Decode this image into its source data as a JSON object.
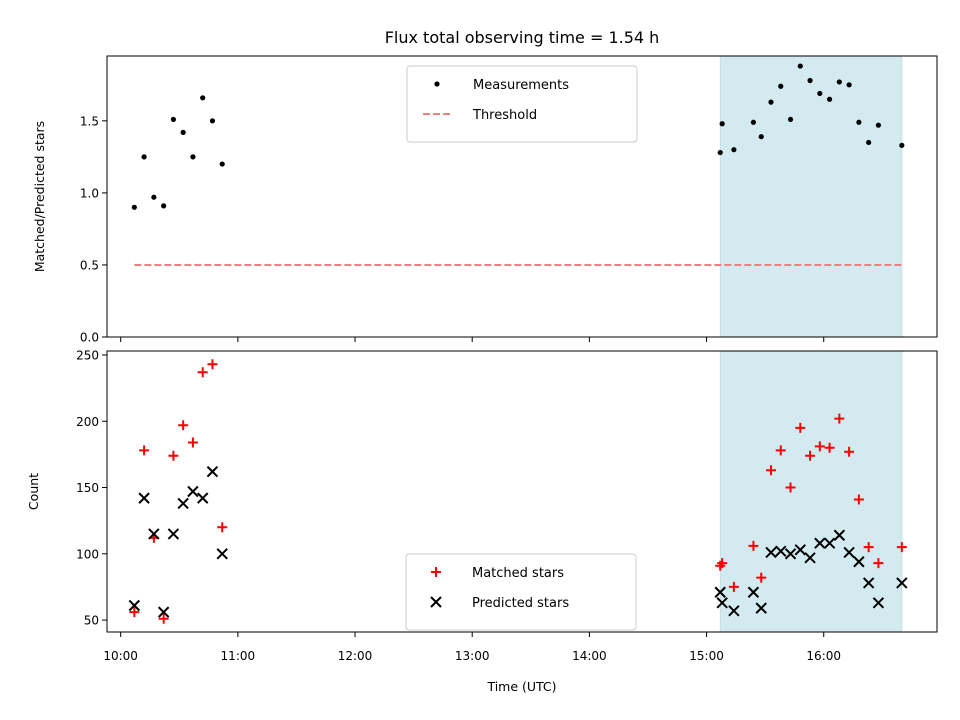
{
  "chart_data": {
    "title": "Flux total observing time = 1.54 h",
    "xlabel": "Time (UTC)",
    "x_tick_labels": [
      "10:00",
      "11:00",
      "12:00",
      "13:00",
      "14:00",
      "15:00",
      "16:00"
    ],
    "x_ticks": [
      "10:00",
      "11:00",
      "12:00",
      "13:00",
      "14:00",
      "15:00",
      "16:00"
    ],
    "xlim": [
      "09:53",
      "16:58"
    ],
    "highlight": {
      "start": "15:07",
      "end": "16:40",
      "color": "#d3eaf0"
    },
    "charts": [
      {
        "id": "ratio",
        "type": "scatter",
        "ylabel": "Matched/Predicted stars",
        "ylim": [
          0,
          1.95
        ],
        "y_ticks": [
          0.0,
          0.5,
          1.0,
          1.5
        ],
        "y_tick_labels": [
          "0.0",
          "0.5",
          "1.0",
          "1.5"
        ],
        "legend": {
          "placement": "top-center",
          "entries": [
            "Measurements",
            "Threshold"
          ]
        },
        "series": [
          {
            "name": "Measurements",
            "marker": "dot",
            "color": "#000000",
            "points": [
              {
                "x": "10:07",
                "y": 0.9
              },
              {
                "x": "10:12",
                "y": 1.25
              },
              {
                "x": "10:17",
                "y": 0.97
              },
              {
                "x": "10:22",
                "y": 0.91
              },
              {
                "x": "10:27",
                "y": 1.51
              },
              {
                "x": "10:32",
                "y": 1.42
              },
              {
                "x": "10:37",
                "y": 1.25
              },
              {
                "x": "10:42",
                "y": 1.66
              },
              {
                "x": "10:47",
                "y": 1.5
              },
              {
                "x": "10:52",
                "y": 1.2
              },
              {
                "x": "15:07",
                "y": 1.28
              },
              {
                "x": "15:08",
                "y": 1.48
              },
              {
                "x": "15:14",
                "y": 1.3
              },
              {
                "x": "15:24",
                "y": 1.49
              },
              {
                "x": "15:28",
                "y": 1.39
              },
              {
                "x": "15:33",
                "y": 1.63
              },
              {
                "x": "15:38",
                "y": 1.74
              },
              {
                "x": "15:43",
                "y": 1.51
              },
              {
                "x": "15:48",
                "y": 1.88
              },
              {
                "x": "15:53",
                "y": 1.78
              },
              {
                "x": "15:58",
                "y": 1.69
              },
              {
                "x": "16:03",
                "y": 1.65
              },
              {
                "x": "16:08",
                "y": 1.77
              },
              {
                "x": "16:13",
                "y": 1.75
              },
              {
                "x": "16:18",
                "y": 1.49
              },
              {
                "x": "16:23",
                "y": 1.35
              },
              {
                "x": "16:28",
                "y": 1.47
              },
              {
                "x": "16:40",
                "y": 1.33
              }
            ]
          },
          {
            "name": "Threshold",
            "marker": "dashed-line",
            "color": "#f08080",
            "points": [
              {
                "x": "10:07",
                "y": 0.5
              },
              {
                "x": "16:40",
                "y": 0.5
              }
            ]
          }
        ]
      },
      {
        "id": "counts",
        "type": "scatter",
        "ylabel": "Count",
        "ylim": [
          41,
          253
        ],
        "y_ticks": [
          50,
          100,
          150,
          200,
          250
        ],
        "y_tick_labels": [
          "50",
          "100",
          "150",
          "200",
          "250"
        ],
        "legend": {
          "placement": "bottom-center",
          "entries": [
            "Matched stars",
            "Predicted stars"
          ]
        },
        "series": [
          {
            "name": "Matched stars",
            "marker": "plus",
            "color": "#ff0000",
            "points": [
              {
                "x": "10:07",
                "y": 56
              },
              {
                "x": "10:12",
                "y": 178
              },
              {
                "x": "10:17",
                "y": 112
              },
              {
                "x": "10:22",
                "y": 51
              },
              {
                "x": "10:27",
                "y": 174
              },
              {
                "x": "10:32",
                "y": 197
              },
              {
                "x": "10:37",
                "y": 184
              },
              {
                "x": "10:42",
                "y": 237
              },
              {
                "x": "10:47",
                "y": 243
              },
              {
                "x": "10:52",
                "y": 120
              },
              {
                "x": "15:07",
                "y": 91
              },
              {
                "x": "15:08",
                "y": 93
              },
              {
                "x": "15:14",
                "y": 75
              },
              {
                "x": "15:24",
                "y": 106
              },
              {
                "x": "15:28",
                "y": 82
              },
              {
                "x": "15:33",
                "y": 163
              },
              {
                "x": "15:38",
                "y": 178
              },
              {
                "x": "15:43",
                "y": 150
              },
              {
                "x": "15:48",
                "y": 195
              },
              {
                "x": "15:53",
                "y": 174
              },
              {
                "x": "15:58",
                "y": 181
              },
              {
                "x": "16:03",
                "y": 180
              },
              {
                "x": "16:08",
                "y": 202
              },
              {
                "x": "16:13",
                "y": 177
              },
              {
                "x": "16:18",
                "y": 141
              },
              {
                "x": "16:23",
                "y": 105
              },
              {
                "x": "16:28",
                "y": 93
              },
              {
                "x": "16:40",
                "y": 105
              }
            ]
          },
          {
            "name": "Predicted stars",
            "marker": "x",
            "color": "#000000",
            "points": [
              {
                "x": "10:07",
                "y": 61
              },
              {
                "x": "10:12",
                "y": 142
              },
              {
                "x": "10:17",
                "y": 115
              },
              {
                "x": "10:22",
                "y": 56
              },
              {
                "x": "10:27",
                "y": 115
              },
              {
                "x": "10:32",
                "y": 138
              },
              {
                "x": "10:37",
                "y": 147
              },
              {
                "x": "10:42",
                "y": 142
              },
              {
                "x": "10:47",
                "y": 162
              },
              {
                "x": "10:52",
                "y": 100
              },
              {
                "x": "15:07",
                "y": 71
              },
              {
                "x": "15:08",
                "y": 63
              },
              {
                "x": "15:14",
                "y": 57
              },
              {
                "x": "15:24",
                "y": 71
              },
              {
                "x": "15:28",
                "y": 59
              },
              {
                "x": "15:33",
                "y": 101
              },
              {
                "x": "15:38",
                "y": 102
              },
              {
                "x": "15:43",
                "y": 100
              },
              {
                "x": "15:48",
                "y": 103
              },
              {
                "x": "15:53",
                "y": 97
              },
              {
                "x": "15:58",
                "y": 108
              },
              {
                "x": "16:03",
                "y": 108
              },
              {
                "x": "16:08",
                "y": 114
              },
              {
                "x": "16:13",
                "y": 101
              },
              {
                "x": "16:18",
                "y": 94
              },
              {
                "x": "16:23",
                "y": 78
              },
              {
                "x": "16:28",
                "y": 63
              },
              {
                "x": "16:40",
                "y": 78
              }
            ]
          }
        ]
      }
    ]
  }
}
